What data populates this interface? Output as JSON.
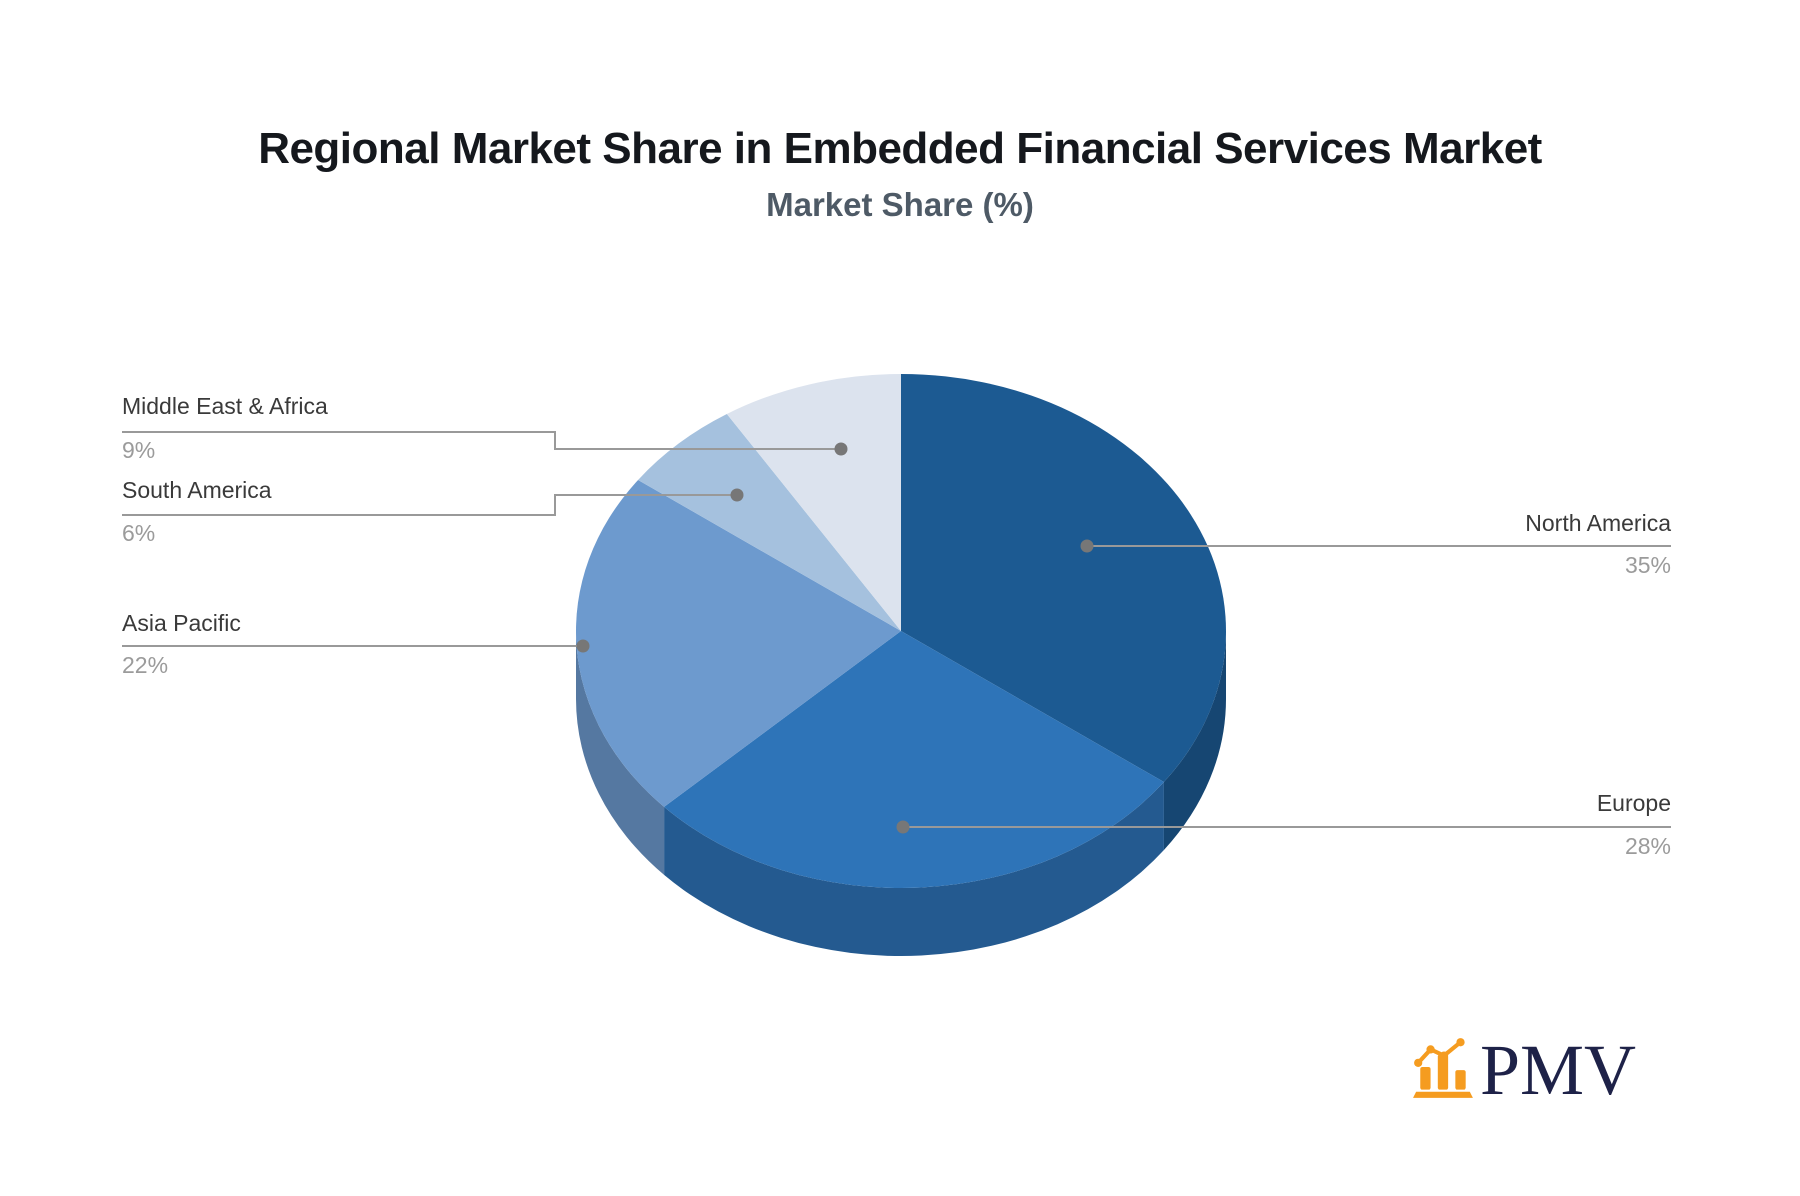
{
  "title": "Regional Market Share in Embedded Financial Services Market",
  "subtitle": "Market Share (%)",
  "chart_data": {
    "type": "pie",
    "style": "3d-pie",
    "title": "Regional Market Share in Embedded Financial Services Market",
    "subtitle": "Market Share (%)",
    "unit": "%",
    "start_angle": "12 o'clock",
    "direction": "clockwise",
    "categories": [
      "North America",
      "Europe",
      "Asia Pacific",
      "South America",
      "Middle East & Africa"
    ],
    "values": [
      35,
      28,
      22,
      6,
      9
    ],
    "labels": [
      "35%",
      "28%",
      "22%",
      "6%",
      "9%"
    ],
    "colors": [
      "#1C5A92",
      "#2E74B8",
      "#6D9ACE",
      "#A5C1DE",
      "#DCE3EE"
    ],
    "legend_position": "callout-labels"
  },
  "colors": {
    "background": "#FFFFFF",
    "title": "#15181D",
    "subtitle": "#4E5A66",
    "label_text": "#3A3A3A",
    "value_text": "#9B9B9B",
    "leader_line": "#999999",
    "leader_dot": "#777777"
  },
  "logo": {
    "text": "PMV",
    "icon": "bar-chart-icon",
    "accent": "#F59C20",
    "text_color": "#1E2248"
  }
}
